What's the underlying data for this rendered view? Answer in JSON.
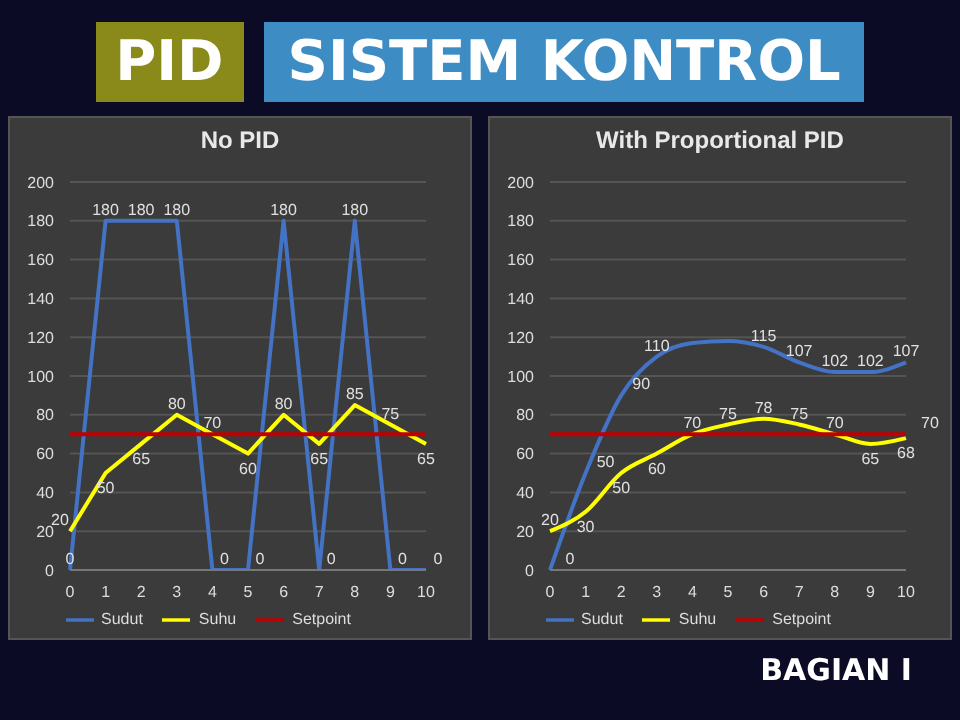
{
  "chart_data": [
    {
      "type": "line",
      "title": "No PID",
      "categories": [
        "0",
        "1",
        "2",
        "3",
        "4",
        "5",
        "6",
        "7",
        "8",
        "9",
        "10"
      ],
      "series": [
        {
          "name": "Sudut",
          "color": "#4472c4",
          "values": [
            0,
            180,
            180,
            180,
            0,
            0,
            180,
            0,
            180,
            0,
            0
          ],
          "value_labels": [
            "0",
            "180",
            "180",
            "180",
            "0",
            "0",
            "180",
            "0",
            "180",
            "0",
            "0"
          ]
        },
        {
          "name": "Suhu",
          "color": "#ffff00",
          "values": [
            20,
            50,
            65,
            80,
            70,
            60,
            80,
            65,
            85,
            75,
            65
          ],
          "value_labels": [
            "20",
            "50",
            "65",
            "80",
            "70",
            "60",
            "80",
            "65",
            "85",
            "75",
            "65"
          ]
        },
        {
          "name": "Setpoint",
          "color": "#c00000",
          "values": [
            70,
            70,
            70,
            70,
            70,
            70,
            70,
            70,
            70,
            70,
            70
          ]
        }
      ],
      "ylim": [
        0,
        200
      ],
      "yticks": [
        0,
        20,
        40,
        60,
        80,
        100,
        120,
        140,
        160,
        180,
        200
      ],
      "grid": "y",
      "legend": "bottom",
      "marker": "none"
    },
    {
      "type": "line",
      "title": "With Proportional PID",
      "categories": [
        "0",
        "1",
        "2",
        "3",
        "4",
        "5",
        "6",
        "7",
        "8",
        "9",
        "10"
      ],
      "series": [
        {
          "name": "Sudut",
          "color": "#4472c4",
          "values": [
            0,
            50,
            90,
            110,
            117,
            118,
            115,
            107,
            102,
            102,
            107
          ],
          "value_labels": [
            "0",
            "50",
            "90",
            "110",
            null,
            null,
            "115",
            "107",
            "102",
            "102",
            "107"
          ]
        },
        {
          "name": "Suhu",
          "color": "#ffff00",
          "values": [
            20,
            30,
            50,
            60,
            70,
            75,
            78,
            75,
            70,
            65,
            68
          ],
          "value_labels": [
            "20",
            "30",
            "50",
            "60",
            "70",
            "75",
            "78",
            "75",
            "70",
            "65",
            "68"
          ]
        },
        {
          "name": "Setpoint",
          "color": "#c00000",
          "values": [
            70,
            70,
            70,
            70,
            70,
            70,
            70,
            70,
            70,
            70,
            70
          ],
          "value_labels": [
            null,
            null,
            null,
            null,
            null,
            null,
            null,
            null,
            null,
            null,
            "70"
          ]
        }
      ],
      "ylim": [
        0,
        200
      ],
      "yticks": [
        0,
        20,
        40,
        60,
        80,
        100,
        120,
        140,
        160,
        180,
        200
      ],
      "grid": "y",
      "legend": "bottom",
      "marker": "none"
    },
    {
      "type": "other",
      "title": "PID",
      "subtitle": "SISTEM KONTROL",
      "annotations": [
        "BAGIAN I"
      ]
    }
  ]
}
